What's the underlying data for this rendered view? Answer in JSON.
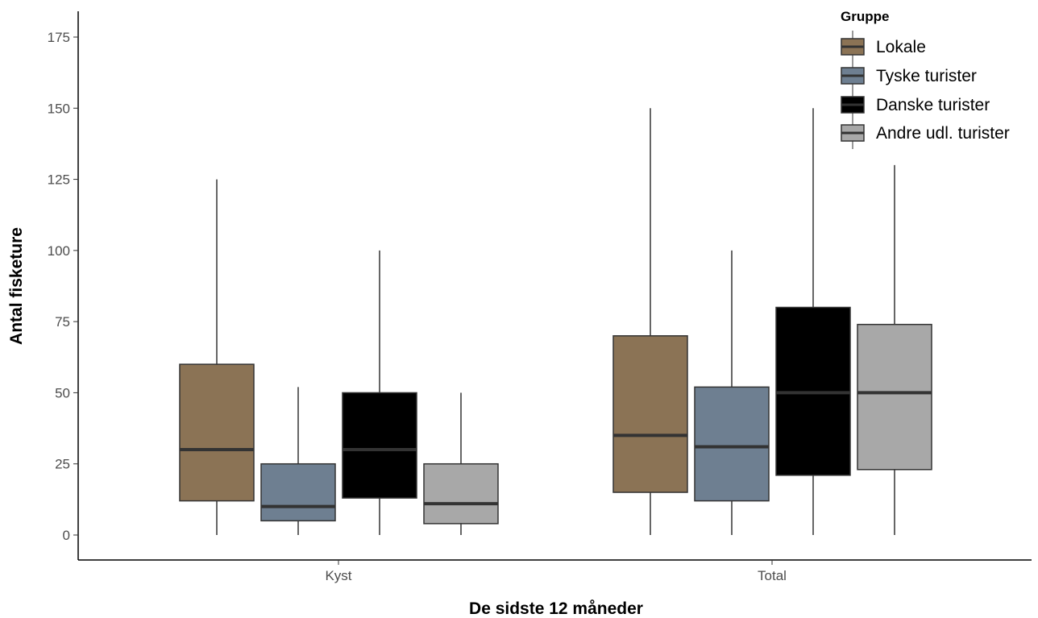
{
  "chart_data": {
    "type": "boxplot",
    "title": "",
    "xlabel": "De sidste 12 måneder",
    "ylabel": "Antal fisketure",
    "ylim": [
      0,
      180
    ],
    "yticks": [
      0,
      25,
      50,
      75,
      100,
      125,
      150,
      175
    ],
    "categories": [
      "Kyst",
      "Total"
    ],
    "legend_title": "Gruppe",
    "legend_position": "top-right",
    "grid": false,
    "series": [
      {
        "name": "Lokale",
        "color": "#8b7355",
        "boxes": [
          {
            "min": 0,
            "q1": 12,
            "median": 30,
            "q3": 60,
            "max": 125
          },
          {
            "min": 0,
            "q1": 15,
            "median": 35,
            "q3": 70,
            "max": 150
          }
        ]
      },
      {
        "name": "Tyske turister",
        "color": "#6e7f91",
        "boxes": [
          {
            "min": 0,
            "q1": 5,
            "median": 10,
            "q3": 25,
            "max": 52
          },
          {
            "min": 0,
            "q1": 12,
            "median": 31,
            "q3": 52,
            "max": 100
          }
        ]
      },
      {
        "name": "Danske turister",
        "color": "#000000",
        "boxes": [
          {
            "min": 0,
            "q1": 13,
            "median": 30,
            "q3": 50,
            "max": 100
          },
          {
            "min": 0,
            "q1": 21,
            "median": 50,
            "q3": 80,
            "max": 150
          }
        ]
      },
      {
        "name": "Andre udl. turister",
        "color": "#a8a8a8",
        "boxes": [
          {
            "min": 0,
            "q1": 4,
            "median": 11,
            "q3": 25,
            "max": 50
          },
          {
            "min": 0,
            "q1": 23,
            "median": 50,
            "q3": 74,
            "max": 130
          }
        ]
      }
    ]
  }
}
